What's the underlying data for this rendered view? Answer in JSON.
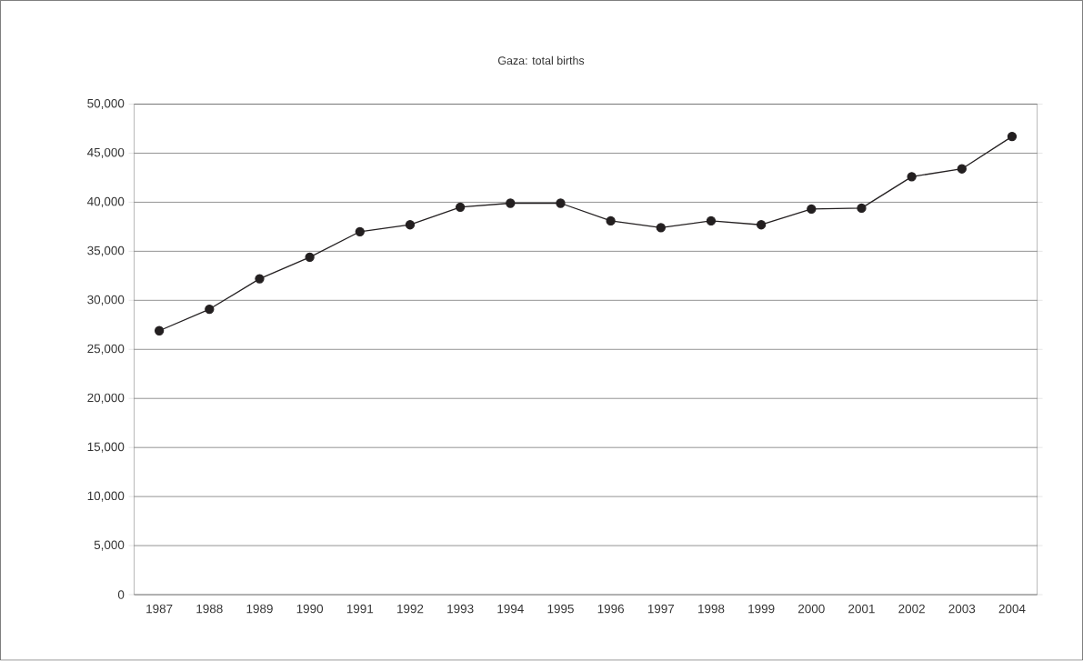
{
  "chart_data": {
    "type": "line",
    "title": "Gaza: total births",
    "categories": [
      "1987",
      "1988",
      "1989",
      "1990",
      "1991",
      "1992",
      "1993",
      "1994",
      "1995",
      "1996",
      "1997",
      "1998",
      "1999",
      "2000",
      "2001",
      "2002",
      "2003",
      "2004"
    ],
    "series": [
      {
        "color": "#231f20",
        "values": [
          26900,
          29100,
          32200,
          34400,
          37000,
          37700,
          39500,
          39900,
          39900,
          38100,
          37400,
          38100,
          37700,
          39300,
          39400,
          42600,
          43400,
          46700
        ]
      }
    ],
    "ylim": [
      0,
      50000
    ],
    "yticks": [
      {
        "value": 0,
        "label": "0"
      },
      {
        "value": 5000,
        "label": "5,000"
      },
      {
        "value": 10000,
        "label": "10,000"
      },
      {
        "value": 15000,
        "label": "15,000"
      },
      {
        "value": 20000,
        "label": "20,000"
      },
      {
        "value": 25000,
        "label": "25,000"
      },
      {
        "value": 30000,
        "label": "30,000"
      },
      {
        "value": 35000,
        "label": "35,000"
      },
      {
        "value": 40000,
        "label": "40,000"
      },
      {
        "value": 45000,
        "label": "45,000"
      },
      {
        "value": 50000,
        "label": "50,000"
      }
    ],
    "grid": "y",
    "marker": "circle",
    "line_style": "solid"
  }
}
